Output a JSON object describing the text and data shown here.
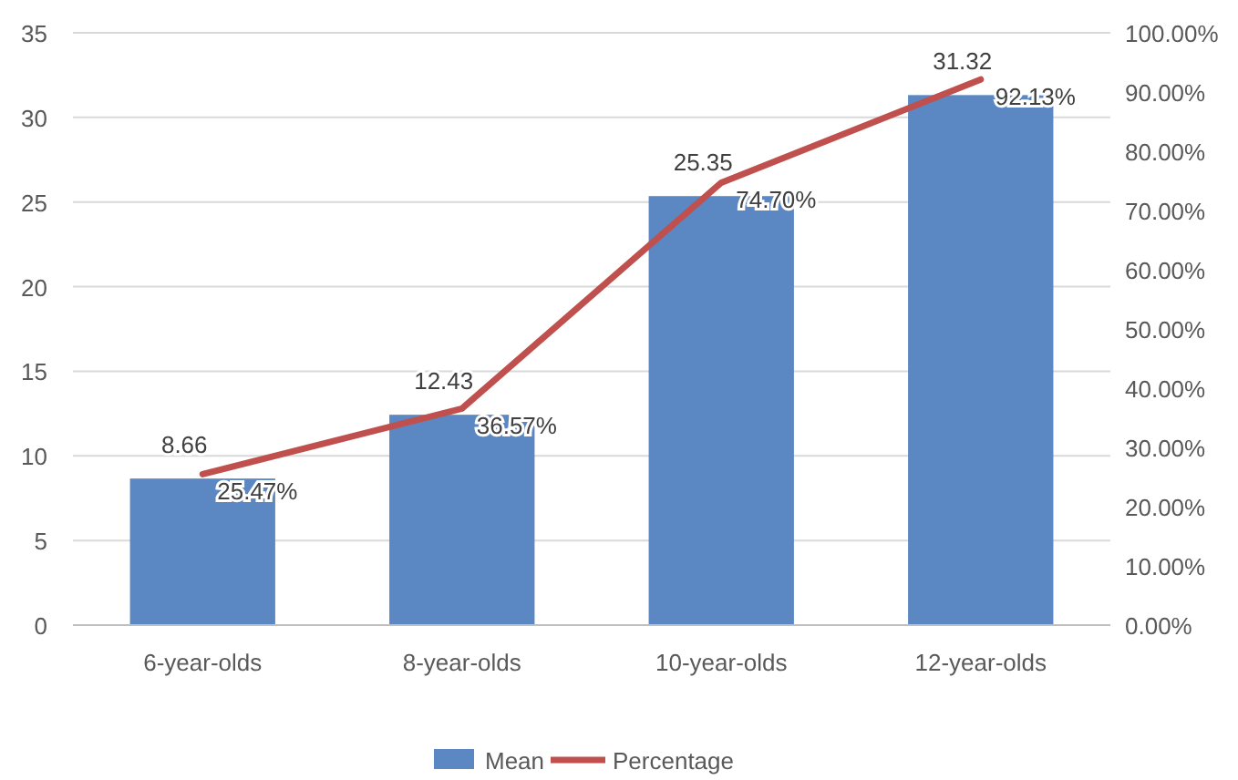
{
  "chart_data": {
    "type": "bar",
    "categories": [
      "6-year-olds",
      "8-year-olds",
      "10-year-olds",
      "12-year-olds"
    ],
    "series": [
      {
        "name": "Mean",
        "color": "#5b87c2",
        "values": [
          8.66,
          12.43,
          25.35,
          31.32
        ],
        "value_labels": [
          "8.66",
          "12.43",
          "25.35",
          "31.32"
        ]
      },
      {
        "name": "Percentage",
        "type": "line",
        "axis": "y2",
        "color": "#c0504d",
        "values": [
          25.47,
          36.57,
          74.7,
          92.13
        ],
        "value_labels": [
          "25.47%",
          "36.57%",
          "74.70%",
          "92.13%"
        ]
      }
    ],
    "ylim": [
      0,
      35
    ],
    "yticks": [
      0,
      5,
      10,
      15,
      20,
      25,
      30,
      35
    ],
    "y2lim": [
      0,
      100
    ],
    "y2ticks": [
      {
        "value": 0,
        "label": "0.00%"
      },
      {
        "value": 10,
        "label": "10.00%"
      },
      {
        "value": 20,
        "label": "20.00%"
      },
      {
        "value": 30,
        "label": "30.00%"
      },
      {
        "value": 40,
        "label": "40.00%"
      },
      {
        "value": 50,
        "label": "50.00%"
      },
      {
        "value": 60,
        "label": "60.00%"
      },
      {
        "value": 70,
        "label": "70.00%"
      },
      {
        "value": 80,
        "label": "80.00%"
      },
      {
        "value": 90,
        "label": "90.00%"
      },
      {
        "value": 100,
        "label": "100.00%"
      }
    ],
    "grid": "y",
    "legend": "bottom",
    "marker": "none",
    "line_style": "solid"
  }
}
